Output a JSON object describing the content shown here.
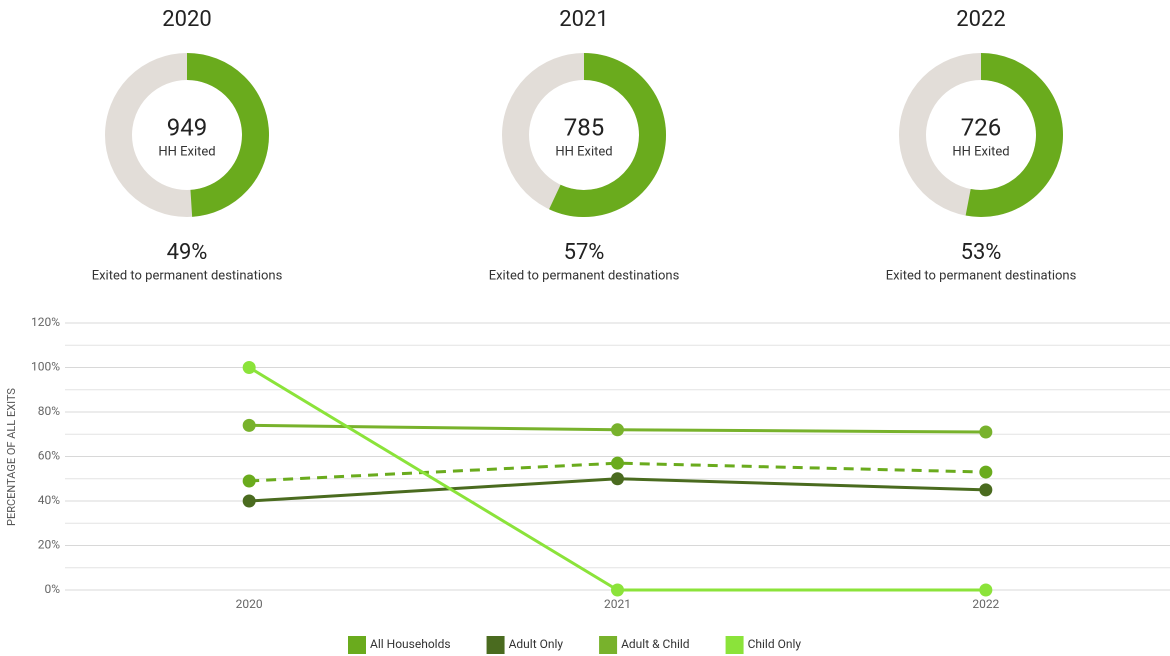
{
  "chart_data": [
    {
      "type": "donut",
      "title": "2020",
      "values": [
        49
      ],
      "value_labels": [
        "49%"
      ],
      "total": 949,
      "total_label": "HH Exited",
      "subtitle": "Exited to permanent destinations",
      "color": "#6aab1d",
      "rest_color": "#e2ddd8"
    },
    {
      "type": "donut",
      "title": "2021",
      "values": [
        57
      ],
      "value_labels": [
        "57%"
      ],
      "total": 785,
      "total_label": "HH Exited",
      "subtitle": "Exited to permanent destinations",
      "color": "#6aab1d",
      "rest_color": "#e2ddd8"
    },
    {
      "type": "donut",
      "title": "2022",
      "values": [
        53
      ],
      "value_labels": [
        "53%"
      ],
      "total": 726,
      "total_label": "HH Exited",
      "subtitle": "Exited to permanent destinations",
      "color": "#6aab1d",
      "rest_color": "#e2ddd8"
    },
    {
      "type": "line",
      "y_label": "PERCENTAGE OF ALL EXITS",
      "categories": [
        "2020",
        "2021",
        "2022"
      ],
      "ylim": [
        0,
        120
      ],
      "yticks": [
        {
          "value": 0,
          "label": "0%"
        },
        {
          "value": 20,
          "label": "20%"
        },
        {
          "value": 40,
          "label": "40%"
        },
        {
          "value": 60,
          "label": "60%"
        },
        {
          "value": 80,
          "label": "80%"
        },
        {
          "value": 100,
          "label": "100%"
        },
        {
          "value": 120,
          "label": "120%"
        }
      ],
      "grid": true,
      "series": [
        {
          "name": "All Households",
          "color": "#6aab1d",
          "dashed": true,
          "values": [
            49,
            57,
            53
          ]
        },
        {
          "name": "Adult Only",
          "color": "#4a6b1f",
          "values": [
            40,
            50,
            45
          ]
        },
        {
          "name": "Adult & Child",
          "color": "#78b22c",
          "values": [
            74,
            72,
            71
          ]
        },
        {
          "name": "Child Only",
          "color": "#8be33a",
          "values": [
            100,
            0,
            0
          ]
        }
      ]
    }
  ]
}
